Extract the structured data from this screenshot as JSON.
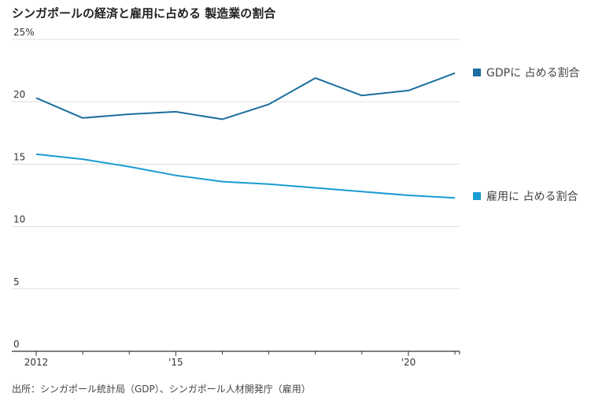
{
  "title": "シンガポールの経済と雇用に占める 製造業の割合",
  "source": "出所：シンガポール統計局（GDP）、シンガポール人材開発庁（雇用）",
  "colors": {
    "gdp": "#1b6e9e",
    "employment": "#1a9bd1",
    "grid": "#dddddd",
    "axis": "#333333"
  },
  "chart_data": {
    "type": "line",
    "title": "シンガポールの経済と雇用に占める 製造業の割合",
    "x": [
      2012,
      2013,
      2014,
      2015,
      2016,
      2017,
      2018,
      2019,
      2020,
      2021
    ],
    "x_tick_values": [
      2012,
      2015,
      2020
    ],
    "x_tick_labels": [
      "2012",
      "'15",
      "'20"
    ],
    "y_ticks": [
      0,
      5,
      10,
      15,
      20,
      25
    ],
    "y_tick_labels": [
      "0",
      "5",
      "10",
      "15",
      "20",
      "25%"
    ],
    "ylim": [
      0,
      25
    ],
    "xlim": [
      2012,
      2021.1
    ],
    "grid": true,
    "series": [
      {
        "name": "GDPに 占める割合",
        "values": [
          20.3,
          18.7,
          19.0,
          19.2,
          18.6,
          19.8,
          21.9,
          20.5,
          20.9,
          22.3
        ]
      },
      {
        "name": "雇用に 占める割合",
        "values": [
          15.8,
          15.4,
          14.8,
          14.1,
          13.6,
          13.4,
          13.1,
          12.8,
          12.5,
          12.3
        ]
      }
    ]
  }
}
